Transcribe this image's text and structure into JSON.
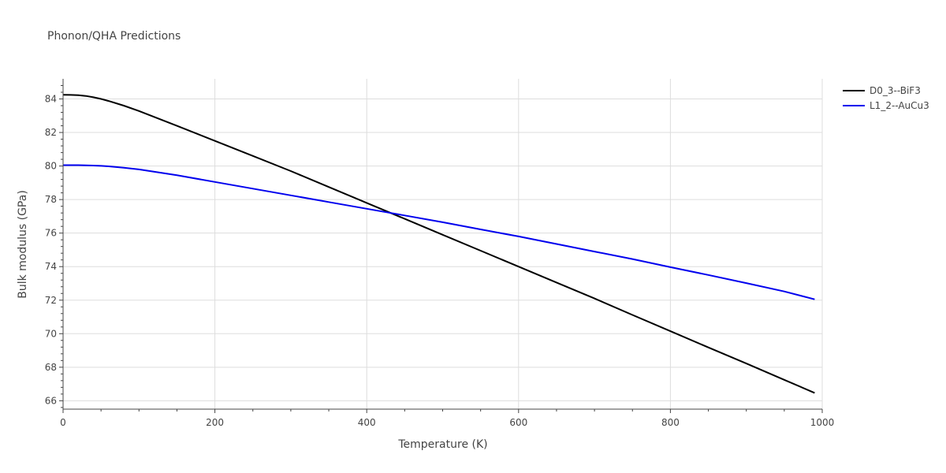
{
  "chart_data": {
    "type": "line",
    "title": "Phonon/QHA Predictions",
    "xlabel": "Temperature (K)",
    "ylabel": "Bulk modulus (GPa)",
    "xlim": [
      0,
      1000
    ],
    "ylim": [
      65.5,
      85.2
    ],
    "x_ticks": [
      0,
      200,
      400,
      600,
      800,
      1000
    ],
    "y_ticks": [
      66,
      68,
      70,
      72,
      74,
      76,
      78,
      80,
      82,
      84
    ],
    "grid": true,
    "legend_position": "top-right",
    "series": [
      {
        "name": "D0_3--BiF3",
        "color": "#000000",
        "x": [
          0,
          10,
          20,
          30,
          40,
          50,
          60,
          80,
          100,
          150,
          200,
          250,
          300,
          350,
          400,
          450,
          500,
          550,
          600,
          650,
          700,
          750,
          800,
          850,
          900,
          950,
          990
        ],
        "y": [
          84.25,
          84.24,
          84.22,
          84.18,
          84.1,
          84.0,
          83.88,
          83.6,
          83.28,
          82.4,
          81.5,
          80.6,
          79.7,
          78.75,
          77.8,
          76.85,
          75.9,
          74.95,
          74.0,
          73.05,
          72.1,
          71.12,
          70.15,
          69.18,
          68.22,
          67.25,
          66.47
        ]
      },
      {
        "name": "L1_2--AuCu3",
        "color": "#0000ee",
        "x": [
          0,
          10,
          20,
          30,
          40,
          50,
          60,
          80,
          100,
          150,
          200,
          250,
          300,
          350,
          400,
          450,
          500,
          550,
          600,
          650,
          700,
          750,
          800,
          850,
          900,
          950,
          990
        ],
        "y": [
          80.05,
          80.05,
          80.05,
          80.04,
          80.03,
          80.01,
          79.98,
          79.9,
          79.8,
          79.45,
          79.05,
          78.65,
          78.25,
          77.85,
          77.45,
          77.05,
          76.65,
          76.22,
          75.8,
          75.35,
          74.9,
          74.45,
          73.97,
          73.5,
          73.02,
          72.52,
          72.05
        ]
      }
    ]
  }
}
